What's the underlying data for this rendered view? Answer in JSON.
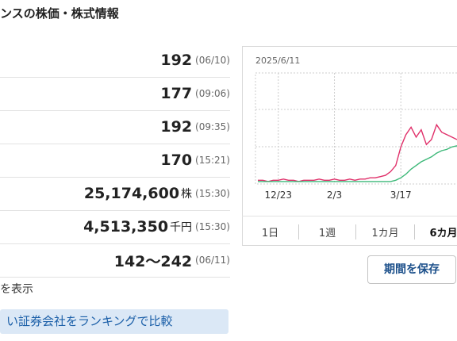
{
  "header": {
    "title": "ンスの株価・株式情報"
  },
  "table": {
    "rows": [
      {
        "value": "192",
        "time": "(06/10)"
      },
      {
        "value": "177",
        "time": "(09:06)"
      },
      {
        "value": "192",
        "time": "(09:35)"
      },
      {
        "value": "170",
        "time": "(15:21)"
      },
      {
        "value": "25,174,600",
        "unit": "株",
        "time": "(15:30)"
      },
      {
        "value": "4,513,350",
        "unit": "千円",
        "time": "(15:30)"
      },
      {
        "value": "142〜242",
        "time": "(06/11)"
      }
    ]
  },
  "note": "を表示",
  "ranking_button": "い証券会社をランキングで比較",
  "chart_data": {
    "type": "line",
    "title": "2025/6/11",
    "ylim": [
      140,
      230
    ],
    "xticks": [
      {
        "value": 4,
        "label": "12/23"
      },
      {
        "value": 15,
        "label": "2/3"
      },
      {
        "value": 28,
        "label": "3/17"
      }
    ],
    "series": [
      {
        "name": null,
        "color": "#e0306a",
        "values": [
          143,
          143,
          142,
          143,
          143,
          144,
          143,
          143,
          142,
          143,
          143,
          143,
          144,
          143,
          143,
          144,
          143,
          143,
          144,
          143,
          144,
          144,
          145,
          145,
          146,
          147,
          150,
          155,
          170,
          180,
          186,
          178,
          184,
          172,
          176,
          188,
          182,
          180,
          178,
          176
        ]
      },
      {
        "name": null,
        "color": "#3cb878",
        "values": [
          142,
          142,
          142,
          142,
          142,
          142,
          142,
          142,
          142,
          142,
          142,
          142,
          142,
          142,
          142,
          142,
          142,
          142,
          142,
          142,
          142,
          142,
          142,
          142,
          142,
          142,
          142,
          143,
          145,
          148,
          152,
          155,
          158,
          160,
          162,
          165,
          167,
          168,
          170,
          171
        ]
      }
    ]
  },
  "tabs": {
    "items": [
      "1日",
      "1週",
      "1カ月",
      "6カ月"
    ],
    "active": 3
  },
  "save_button": "期間を保存"
}
